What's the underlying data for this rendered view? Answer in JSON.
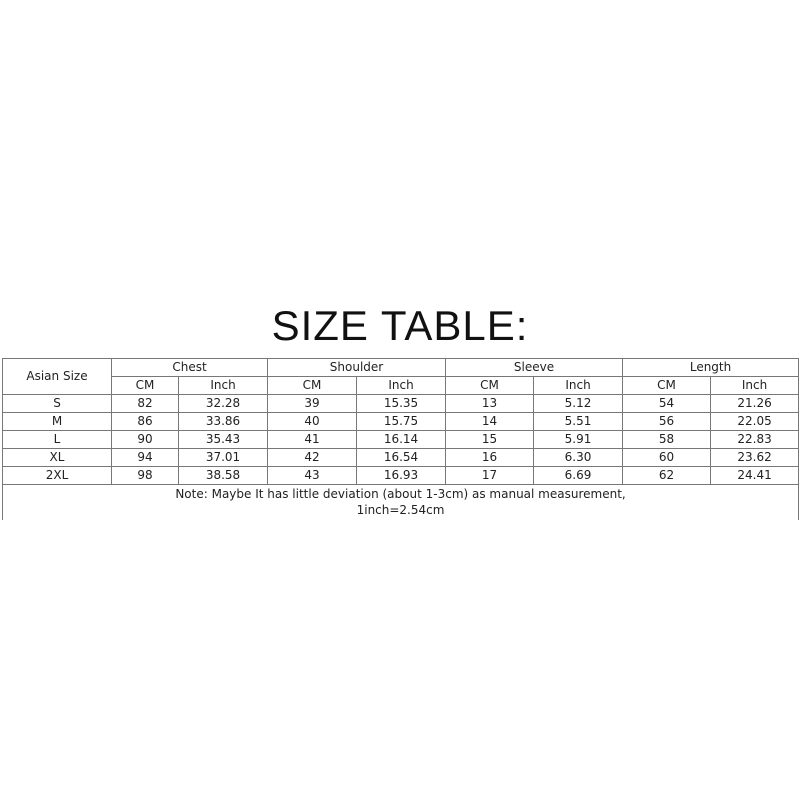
{
  "title": "SIZE TABLE:",
  "table": {
    "size_header": "Asian Size",
    "groups": [
      "Chest",
      "Shoulder",
      "Sleeve",
      "Length"
    ],
    "units": [
      "CM",
      "Inch"
    ],
    "rows": [
      [
        "S",
        "82",
        "32.28",
        "39",
        "15.35",
        "13",
        "5.12",
        "54",
        "21.26"
      ],
      [
        "M",
        "86",
        "33.86",
        "40",
        "15.75",
        "14",
        "5.51",
        "56",
        "22.05"
      ],
      [
        "L",
        "90",
        "35.43",
        "41",
        "16.14",
        "15",
        "5.91",
        "58",
        "22.83"
      ],
      [
        "XL",
        "94",
        "37.01",
        "42",
        "16.54",
        "16",
        "6.30",
        "60",
        "23.62"
      ],
      [
        "2XL",
        "98",
        "38.58",
        "43",
        "16.93",
        "17",
        "6.69",
        "62",
        "24.41"
      ]
    ],
    "note_line1": "Note: Maybe It has little deviation (about 1-3cm) as manual measurement,",
    "note_line2": "1inch=2.54cm"
  }
}
